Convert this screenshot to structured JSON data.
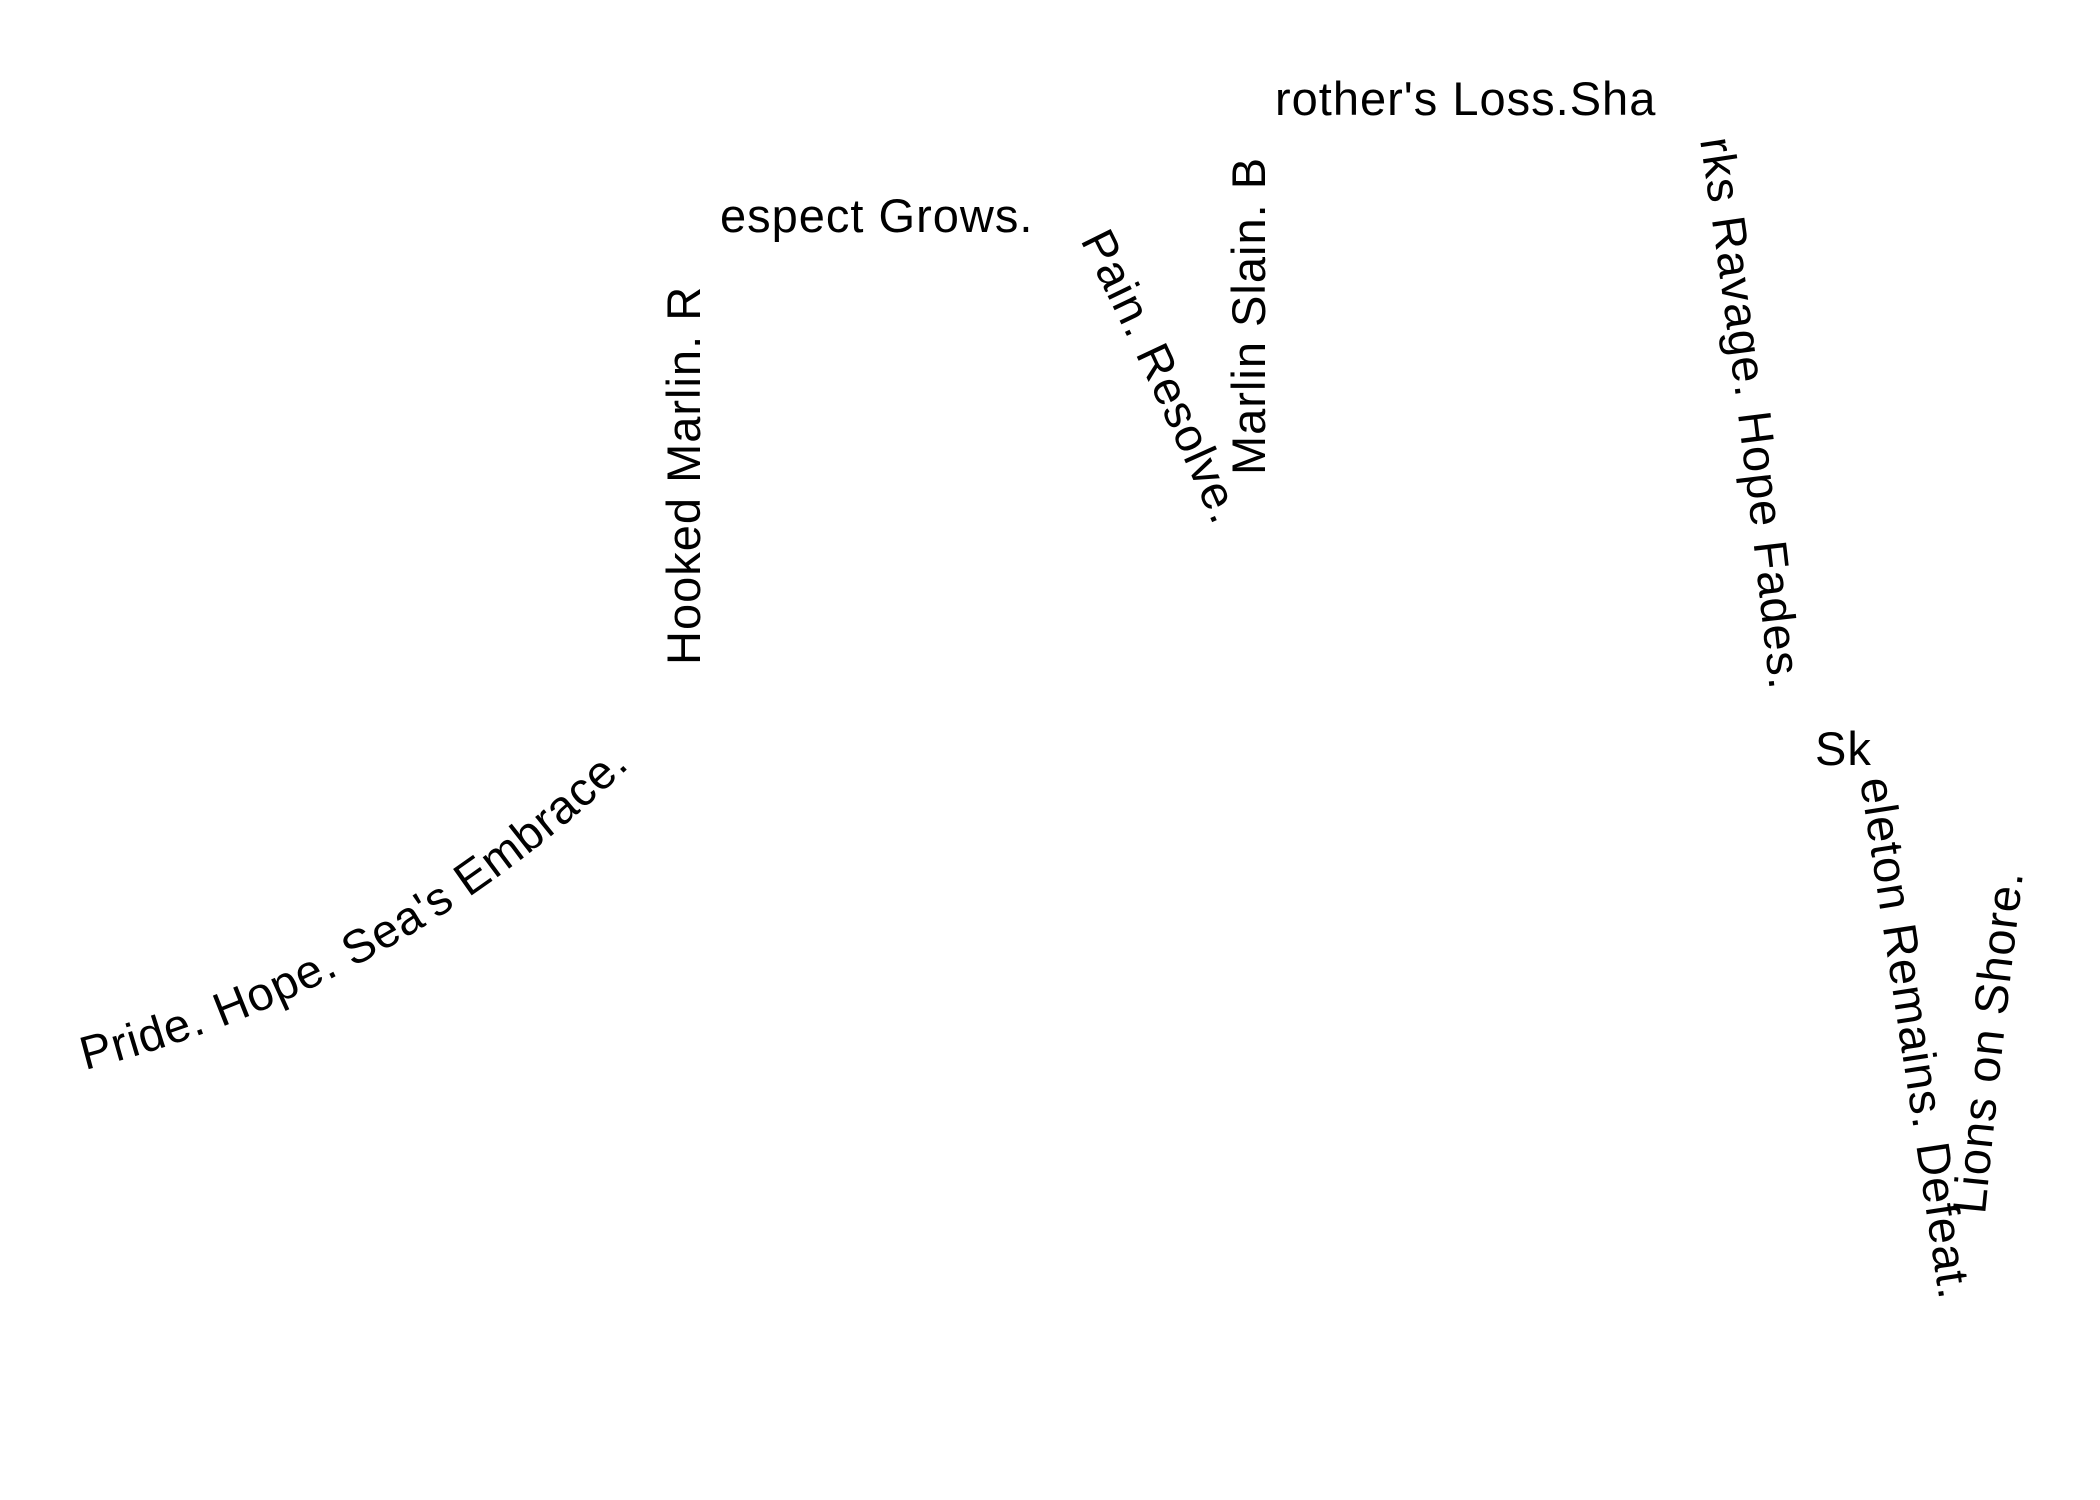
{
  "text_color": "#000000",
  "background_color": "#ffffff",
  "segments": [
    {
      "id": "seg-1",
      "text": "Pride. Hope. Sea's Embrace."
    },
    {
      "id": "seg-2",
      "text": "Hooked Marlin. R"
    },
    {
      "id": "seg-3",
      "text": "espect Grows."
    },
    {
      "id": "seg-4",
      "text": "Pain. Resolve."
    },
    {
      "id": "seg-5",
      "text": "Marlin Slain. B"
    },
    {
      "id": "seg-6",
      "text": "rother's Loss.Sha"
    },
    {
      "id": "seg-7",
      "text": "rks Ravage. Hope Fades."
    },
    {
      "id": "seg-8",
      "text": "Sk"
    },
    {
      "id": "seg-9",
      "text": "eleton Remains. Defeat."
    },
    {
      "id": "seg-10",
      "text": "Lions on Shore."
    }
  ]
}
